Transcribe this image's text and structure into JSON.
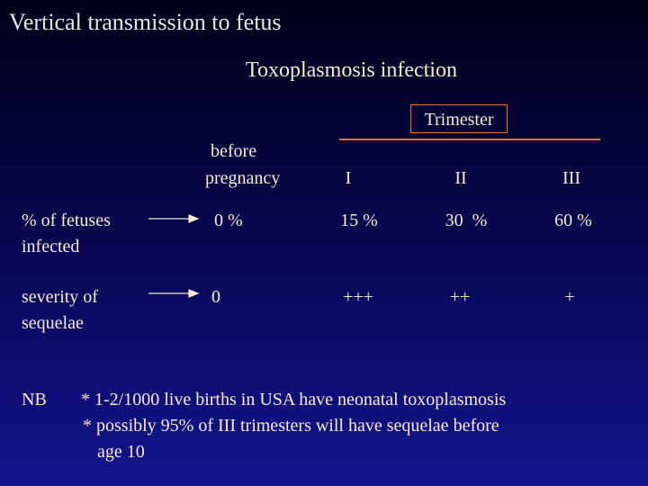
{
  "title": "Vertical transmission to fetus",
  "subtitle": "Toxoplasmosis infection",
  "table": {
    "group_header": "Trimester",
    "column_headers": [
      [
        "before",
        "pregnancy"
      ],
      [
        "I"
      ],
      [
        "II"
      ],
      [
        "III"
      ]
    ],
    "rows": [
      {
        "label": [
          "% of fetuses",
          "infected"
        ],
        "cells": [
          "0 %",
          "15 %",
          "30  %",
          "60 %"
        ]
      },
      {
        "label": [
          "severity of",
          "sequelae"
        ],
        "cells": [
          "0",
          "+++",
          "++",
          "+"
        ]
      }
    ]
  },
  "notes": {
    "label": "NB",
    "items": [
      [
        "* 1-2/1000 live births in USA have neonatal toxoplasmosis"
      ],
      [
        "* possibly 95% of III trimesters will have sequelae before",
        "age 10"
      ]
    ]
  }
}
